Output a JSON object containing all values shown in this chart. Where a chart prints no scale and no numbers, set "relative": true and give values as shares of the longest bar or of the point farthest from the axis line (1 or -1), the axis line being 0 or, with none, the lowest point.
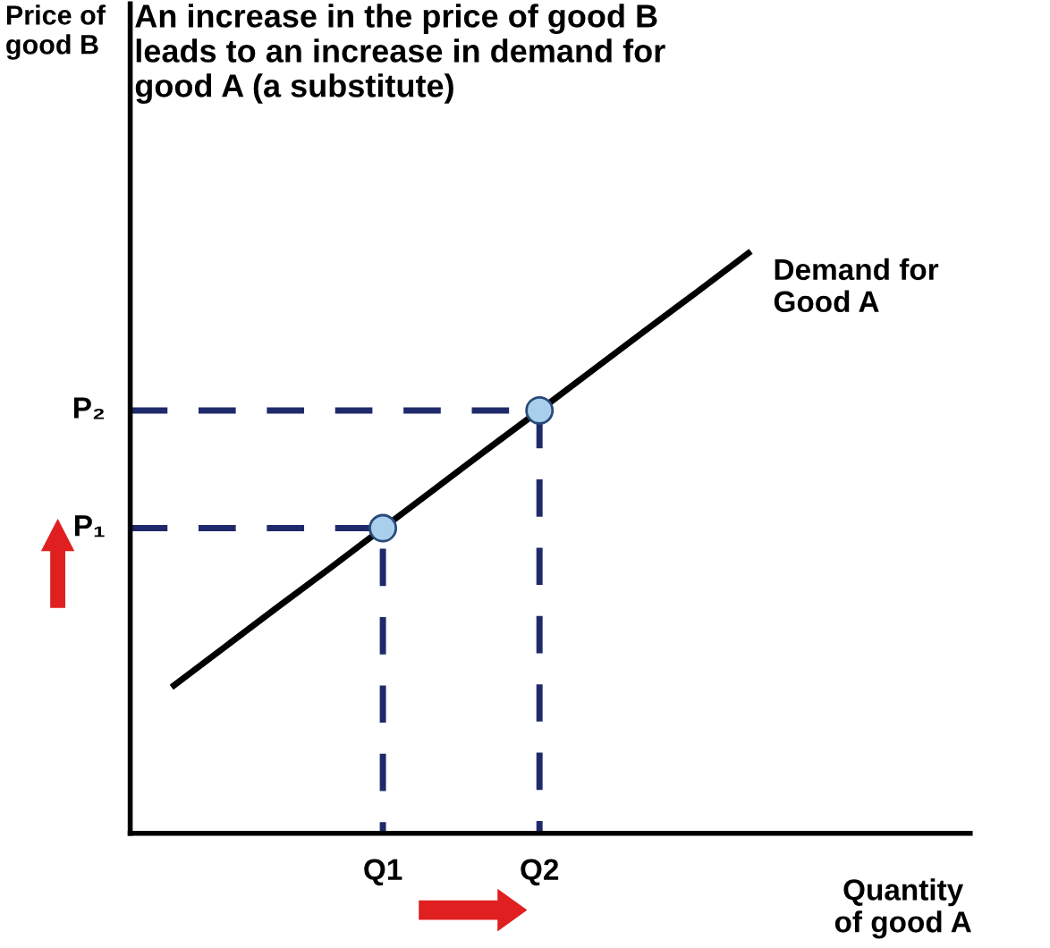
{
  "chart_data": {
    "type": "line",
    "title": "An increase in the price of good B\nleads to an increase in demand for\ngood A (a substitute)",
    "xlabel": "Quantity\nof good A",
    "relative": true,
    "categories": [
      null,
      null,
      null,
      null,
      "Q1",
      null,
      null,
      "Q2",
      null,
      null,
      null,
      null
    ],
    "series": [
      {
        "color": "#000000",
        "values": [
          0.255,
          0.323,
          0.391,
          0.458,
          0.526,
          0.594,
          0.662,
          0.729,
          0.797,
          0.865,
          0.932,
          1.0
        ],
        "line_style": "solid"
      },
      {
        "type": "scatter",
        "color": "#a8d0ec",
        "values": [
          null,
          null,
          null,
          null,
          0.526,
          null,
          null,
          0.729,
          null,
          null,
          null,
          null
        ],
        "marker": "circle"
      }
    ],
    "annotations": [
      "Demand for\nGood A",
      "P₁",
      "P₂",
      "Price of\ngood B"
    ]
  }
}
